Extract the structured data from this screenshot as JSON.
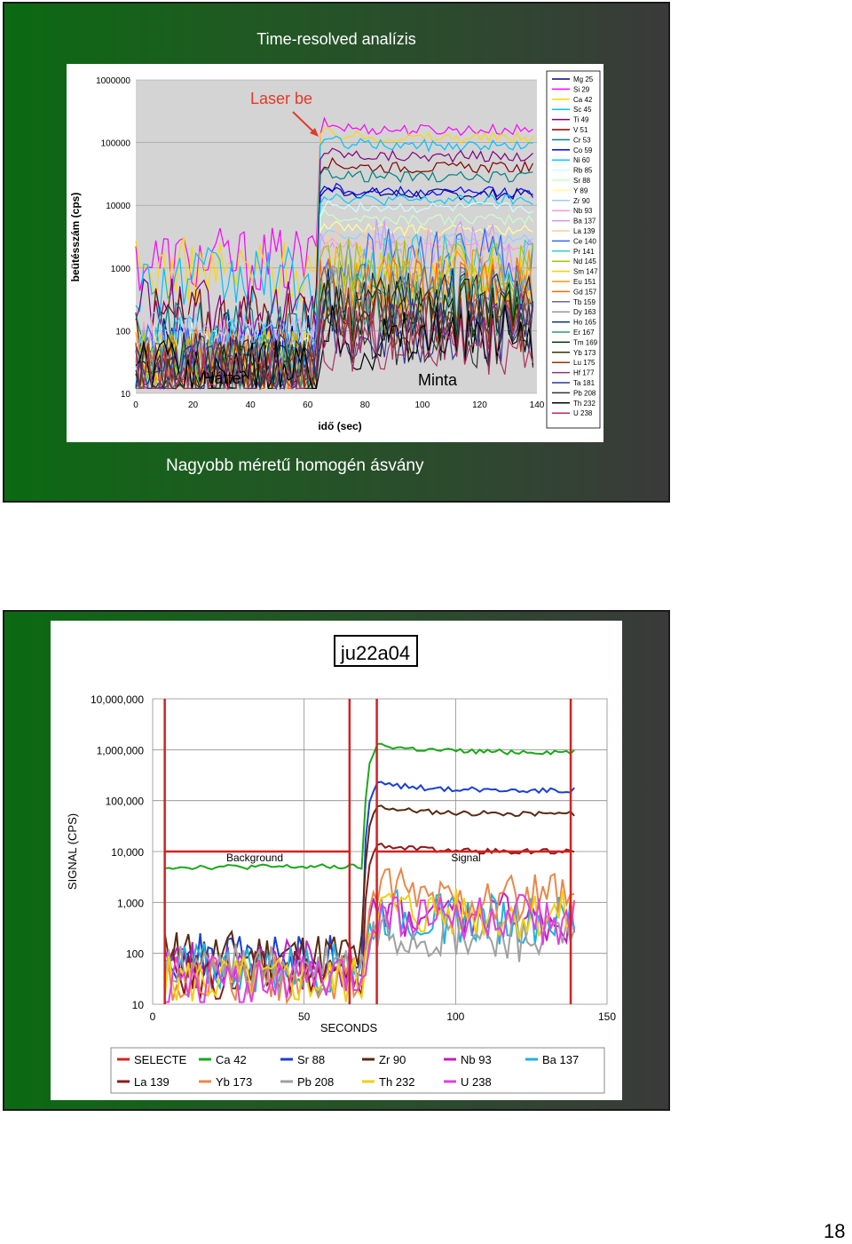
{
  "page_number": "18",
  "slide1": {
    "title": "Time-resolved analízis",
    "caption": "Nagyobb méretű homogén ásvány",
    "annotations": {
      "laser": "Laser be",
      "background": "Háttér",
      "sample": "Minta"
    },
    "colors": {
      "annotation": "#e03a2a",
      "slide_bg": "#0b6a12"
    }
  },
  "slide2": {
    "title_box": "ju22a04",
    "annotations": {
      "background": "Background",
      "signal": "Signal"
    }
  },
  "chart_data": [
    {
      "type": "line",
      "ylabel": "beütésszám (cps)",
      "xlabel": "idő (sec)",
      "yscale": "log",
      "ylim": [
        10,
        1000000
      ],
      "xlim": [
        0,
        140
      ],
      "xticks": [
        "0",
        "20",
        "40",
        "60",
        "80",
        "100",
        "120",
        "140"
      ],
      "yticks": [
        "1000000",
        "100000",
        "10000",
        "1000",
        "100",
        "10"
      ],
      "laser_on_x": 63,
      "legend_position": "right",
      "series": [
        {
          "name": "Mg 25",
          "color": "#000080",
          "bg": 60,
          "sig": 15000
        },
        {
          "name": "Si 29",
          "color": "#ff00ff",
          "bg": 1300,
          "sig": 160000
        },
        {
          "name": "Ca 42",
          "color": "#ffd700",
          "bg": 900,
          "sig": 120000
        },
        {
          "name": "Sc 45",
          "color": "#00bfff",
          "bg": 600,
          "sig": 90000
        },
        {
          "name": "Ti 49",
          "color": "#800080",
          "bg": 200,
          "sig": 60000
        },
        {
          "name": "V 51",
          "color": "#800000",
          "bg": 150,
          "sig": 40000
        },
        {
          "name": "Cr 53",
          "color": "#008080",
          "bg": 80,
          "sig": 28000
        },
        {
          "name": "Co 59",
          "color": "#0000ff",
          "bg": 40,
          "sig": 16000
        },
        {
          "name": "Ni 60",
          "color": "#00ccff",
          "bg": 50,
          "sig": 12000
        },
        {
          "name": "Rb 85",
          "color": "#ccffff",
          "bg": 30,
          "sig": 9000
        },
        {
          "name": "Sr 88",
          "color": "#ccffcc",
          "bg": 30,
          "sig": 6000
        },
        {
          "name": "Y 89",
          "color": "#ffff99",
          "bg": 40,
          "sig": 4000
        },
        {
          "name": "Zr 90",
          "color": "#99ccff",
          "bg": 60,
          "sig": 3000
        },
        {
          "name": "Nb 93",
          "color": "#ff99cc",
          "bg": 50,
          "sig": 2200
        },
        {
          "name": "Ba 137",
          "color": "#cc99ff",
          "bg": 40,
          "sig": 1800
        },
        {
          "name": "La 139",
          "color": "#ffcc99",
          "bg": 30,
          "sig": 1400
        },
        {
          "name": "Ce 140",
          "color": "#3366ff",
          "bg": 40,
          "sig": 1200
        },
        {
          "name": "Pr 141",
          "color": "#33cccc",
          "bg": 30,
          "sig": 1000
        },
        {
          "name": "Nd 145",
          "color": "#99cc00",
          "bg": 30,
          "sig": 800
        },
        {
          "name": "Sm 147",
          "color": "#ffcc00",
          "bg": 30,
          "sig": 650
        },
        {
          "name": "Eu 151",
          "color": "#ff9900",
          "bg": 30,
          "sig": 550
        },
        {
          "name": "Gd 157",
          "color": "#ff6600",
          "bg": 30,
          "sig": 450
        },
        {
          "name": "Tb 159",
          "color": "#666699",
          "bg": 25,
          "sig": 380
        },
        {
          "name": "Dy 163",
          "color": "#969696",
          "bg": 25,
          "sig": 320
        },
        {
          "name": "Ho 165",
          "color": "#003366",
          "bg": 25,
          "sig": 280
        },
        {
          "name": "Er 167",
          "color": "#339966",
          "bg": 25,
          "sig": 240
        },
        {
          "name": "Tm 169",
          "color": "#003300",
          "bg": 20,
          "sig": 200
        },
        {
          "name": "Yb 173",
          "color": "#333300",
          "bg": 20,
          "sig": 170
        },
        {
          "name": "Lu 175",
          "color": "#993300",
          "bg": 20,
          "sig": 140
        },
        {
          "name": "Hf 177",
          "color": "#993366",
          "bg": 20,
          "sig": 120
        },
        {
          "name": "Ta 181",
          "color": "#333399",
          "bg": 20,
          "sig": 100
        },
        {
          "name": "Pb 208",
          "color": "#333333",
          "bg": 30,
          "sig": 90
        },
        {
          "name": "Th 232",
          "color": "#000000",
          "bg": 20,
          "sig": 80
        },
        {
          "name": "U 238",
          "color": "#b03060",
          "bg": 20,
          "sig": 70
        }
      ]
    },
    {
      "type": "line",
      "title": "ju22a04",
      "ylabel": "SIGNAL (CPS)",
      "xlabel": "SECONDS",
      "yscale": "log",
      "ylim": [
        10,
        10000000
      ],
      "xlim": [
        0,
        150
      ],
      "xticks": [
        "0",
        "50",
        "100",
        "150"
      ],
      "yticks": [
        "10,000,000",
        "1,000,000",
        "100,000",
        "10,000",
        "1,000",
        "100",
        "10"
      ],
      "selections": [
        {
          "x0": 4,
          "x1": 65,
          "level": 10000
        },
        {
          "x0": 74,
          "x1": 138,
          "level": 10000
        }
      ],
      "legend_position": "bottom",
      "series": [
        {
          "name": "SELECTE",
          "color": "#d62020",
          "kind": "selection"
        },
        {
          "name": "Ca 42",
          "color": "#1aa81a",
          "bg": 5000,
          "sig": 900000
        },
        {
          "name": "Sr 88",
          "color": "#1a40d0",
          "bg": 80,
          "sig": 160000
        },
        {
          "name": "Zr 90",
          "color": "#5a2a10",
          "bg": 90,
          "sig": 55000
        },
        {
          "name": "Nb 93",
          "color": "#c020c0",
          "bg": 60,
          "sig": 500
        },
        {
          "name": "Ba 137",
          "color": "#20b0e0",
          "bg": 50,
          "sig": 450
        },
        {
          "name": "La 139",
          "color": "#8b1a1a",
          "bg": 40,
          "sig": 10000
        },
        {
          "name": "Yb 173",
          "color": "#e8884a",
          "bg": 30,
          "sig": 1300
        },
        {
          "name": "Pb 208",
          "color": "#a0a0a0",
          "bg": 50,
          "sig": 200
        },
        {
          "name": "Th 232",
          "color": "#f0d010",
          "bg": 30,
          "sig": 600
        },
        {
          "name": "U 238",
          "color": "#e040e0",
          "bg": 30,
          "sig": 450
        }
      ]
    }
  ]
}
